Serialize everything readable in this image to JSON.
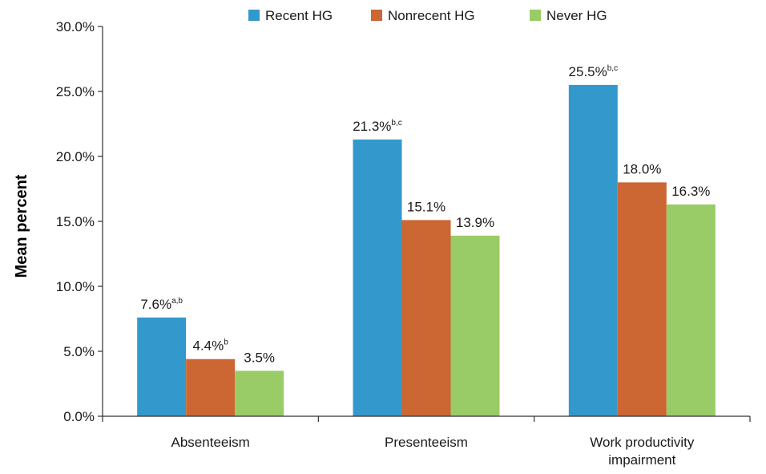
{
  "chart_data": {
    "type": "bar",
    "title": "",
    "xlabel": "",
    "ylabel": "Mean percent",
    "ylim": [
      0,
      30
    ],
    "yticks": [
      "0.0%",
      "5.0%",
      "10.0%",
      "15.0%",
      "20.0%",
      "25.0%",
      "30.0%"
    ],
    "categories": [
      "Absenteeism",
      "Presenteeism",
      "Work productivity impairment"
    ],
    "category_lines": [
      [
        "Absenteeism"
      ],
      [
        "Presenteeism"
      ],
      [
        "Work productivity",
        "impairment"
      ]
    ],
    "legend_position": "top",
    "grid": false,
    "series": [
      {
        "name": "Recent HG",
        "color": "#3399cc",
        "values": [
          7.6,
          21.3,
          25.5
        ],
        "labels": [
          "7.6%",
          "21.3%",
          "25.5%"
        ],
        "superscripts": [
          "a,b",
          "b,c",
          "b,c"
        ]
      },
      {
        "name": "Nonrecent HG",
        "color": "#cc6633",
        "values": [
          4.4,
          15.1,
          18.0
        ],
        "labels": [
          "4.4%",
          "15.1%",
          "18.0%"
        ],
        "superscripts": [
          "b",
          "",
          ""
        ]
      },
      {
        "name": "Never HG",
        "color": "#99cc66",
        "values": [
          3.5,
          13.9,
          16.3
        ],
        "labels": [
          "3.5%",
          "13.9%",
          "16.3%"
        ],
        "superscripts": [
          "",
          "",
          ""
        ]
      }
    ]
  }
}
